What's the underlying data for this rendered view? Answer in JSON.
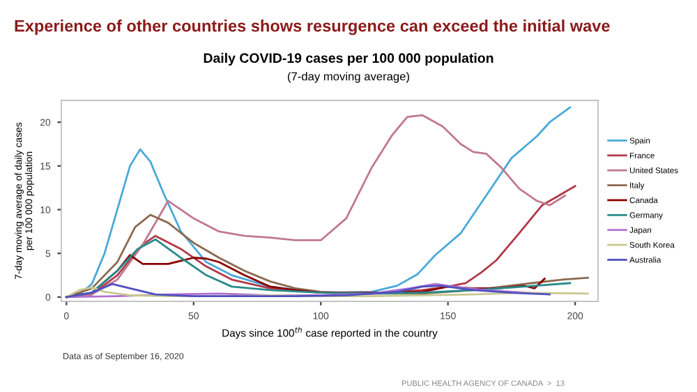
{
  "chart_data": {
    "type": "line",
    "title": "Daily COVID-19 cases per 100 000 population",
    "subtitle": "(7-day moving average)",
    "xlabel": "Days since 100$^{th}$ case reported in the country",
    "ylabel": "7-day moving average of daily cases\nper 100 000 population",
    "annotations": [
      "Experience of other countries shows resurgence can exceed the initial wave",
      "Data as of September 16, 2020",
      "PUBLIC HEALTH AGENCY OF CANADA  >  13"
    ],
    "xlim": [
      -2,
      209
    ],
    "ylim": [
      -0.5,
      22.5
    ],
    "xticks": [
      0,
      50,
      100,
      150,
      200
    ],
    "yticks": [
      0,
      5,
      10,
      15,
      20
    ],
    "grid": false,
    "legend": "right",
    "marker": "none",
    "line_style": "solid",
    "series": [
      {
        "name": "Spain",
        "color": "#4aa8d8",
        "x": [
          0,
          5,
          10,
          15,
          20,
          25,
          29,
          33,
          38,
          45,
          55,
          65,
          80,
          100,
          120,
          130,
          138,
          145,
          155,
          165,
          175,
          185,
          190,
          198
        ],
        "values": [
          0,
          0.3,
          1.5,
          5,
          10,
          15,
          16.9,
          15.5,
          12,
          7.5,
          4,
          2.5,
          1.2,
          0.5,
          0.6,
          1.3,
          2.6,
          4.8,
          7.3,
          11.6,
          15.9,
          18.4,
          20,
          21.7
        ]
      },
      {
        "name": "France",
        "color": "#b03a48",
        "x": [
          0,
          10,
          20,
          30,
          35,
          45,
          55,
          65,
          80,
          100,
          120,
          140,
          150,
          157,
          163,
          169,
          178,
          187,
          193,
          200
        ],
        "values": [
          0,
          0.3,
          2.5,
          6,
          7,
          5.5,
          3.5,
          2,
          1,
          0.5,
          0.4,
          0.8,
          1.2,
          1.6,
          2.8,
          4.2,
          7.3,
          10.5,
          11.5,
          12.7
        ]
      },
      {
        "name": "United States",
        "color": "#c07890",
        "x": [
          0,
          10,
          20,
          30,
          40,
          50,
          60,
          70,
          80,
          90,
          100,
          110,
          120,
          128,
          134,
          140,
          148,
          155,
          160,
          165,
          171,
          178,
          185,
          190,
          196
        ],
        "values": [
          0,
          0.3,
          2,
          6,
          11,
          9,
          7.5,
          7,
          6.8,
          6.5,
          6.5,
          9,
          14.8,
          18.5,
          20.6,
          20.8,
          19.5,
          17.5,
          16.6,
          16.4,
          14.8,
          12.4,
          11,
          10.5,
          11.6
        ]
      },
      {
        "name": "Italy",
        "color": "#8b6a50",
        "x": [
          0,
          10,
          20,
          27,
          33,
          40,
          50,
          60,
          70,
          80,
          90,
          100,
          120,
          140,
          160,
          180,
          195,
          205
        ],
        "values": [
          0,
          1,
          4,
          8,
          9.4,
          8.5,
          6.2,
          4.5,
          3,
          1.8,
          1,
          0.6,
          0.4,
          0.4,
          0.8,
          1.5,
          2.0,
          2.2
        ]
      },
      {
        "name": "Canada",
        "color": "#8b0000",
        "x": [
          0,
          10,
          20,
          25,
          30,
          40,
          50,
          55,
          60,
          70,
          80,
          90,
          100,
          120,
          140,
          150,
          160,
          170,
          180,
          184,
          188
        ],
        "values": [
          0,
          0.5,
          3,
          4.8,
          3.8,
          3.8,
          4.5,
          4.4,
          4,
          2.5,
          1.2,
          0.8,
          0.5,
          0.5,
          0.6,
          1.2,
          1.0,
          1.0,
          1.3,
          1.0,
          2.1
        ]
      },
      {
        "name": "Germany",
        "color": "#2a8a8a",
        "x": [
          0,
          10,
          20,
          28,
          35,
          45,
          55,
          65,
          80,
          100,
          120,
          140,
          160,
          180,
          198
        ],
        "values": [
          0,
          0.5,
          3,
          5.5,
          6.6,
          4.5,
          2.5,
          1.2,
          0.8,
          0.5,
          0.4,
          0.5,
          0.8,
          1.2,
          1.6
        ]
      },
      {
        "name": "Japan",
        "color": "#b070d0",
        "x": [
          0,
          20,
          40,
          60,
          80,
          100,
          120,
          135,
          145,
          155,
          165,
          175,
          182
        ],
        "values": [
          0,
          0.1,
          0.3,
          0.4,
          0.2,
          0.2,
          0.4,
          1.0,
          1.5,
          1.1,
          0.8,
          0.6,
          0.5
        ]
      },
      {
        "name": "South Korea",
        "color": "#c8c890",
        "x": [
          0,
          5,
          10,
          15,
          25,
          40,
          60,
          80,
          100,
          120,
          140,
          160,
          180,
          205
        ],
        "values": [
          0,
          0.8,
          1.1,
          0.6,
          0.2,
          0.1,
          0.1,
          0.2,
          0.1,
          0.1,
          0.2,
          0.3,
          0.5,
          0.4
        ]
      },
      {
        "name": "Australia",
        "color": "#5050c0",
        "x": [
          0,
          10,
          18,
          25,
          35,
          50,
          70,
          90,
          110,
          130,
          140,
          147,
          160,
          175,
          190
        ],
        "values": [
          0,
          0.5,
          1.5,
          1.0,
          0.3,
          0.1,
          0.1,
          0.1,
          0.2,
          0.6,
          1.2,
          1.3,
          0.8,
          0.5,
          0.3
        ]
      }
    ]
  }
}
